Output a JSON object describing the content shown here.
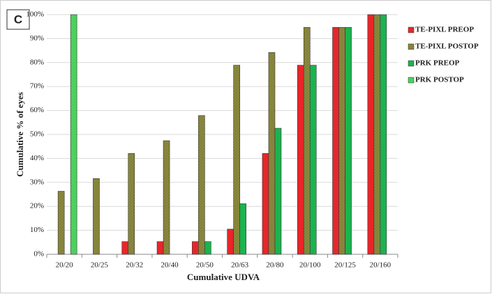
{
  "chart_data": {
    "type": "bar",
    "panel_label": "C",
    "xlabel": "Cumulative UDVA",
    "ylabel": "Cumulative % of  eyes",
    "categories": [
      "20/20",
      "20/25",
      "20/32",
      "20/40",
      "20/50",
      "20/63",
      "20/80",
      "20/100",
      "20/125",
      "20/160"
    ],
    "series": [
      {
        "name": "TE-PIXL PREOP",
        "color": "#e8262a",
        "hatch": false,
        "values": [
          0,
          0,
          5.3,
          5.3,
          5.3,
          10.5,
          42.1,
          78.9,
          94.7,
          100
        ]
      },
      {
        "name": "TE-PIXL POSTOP",
        "color": "#8c8a3e",
        "hatch": true,
        "values": [
          26.3,
          31.6,
          42.1,
          47.4,
          57.9,
          78.9,
          84.2,
          94.7,
          94.7,
          100
        ]
      },
      {
        "name": "PRK PREOP",
        "color": "#1bb34f",
        "hatch": false,
        "values": [
          0,
          0,
          0,
          0,
          5.3,
          21.1,
          52.6,
          78.9,
          94.7,
          100
        ]
      },
      {
        "name": "PRK POSTOP",
        "color": "#4fd660",
        "hatch": true,
        "values": [
          100,
          0,
          0,
          0,
          0,
          0,
          0,
          0,
          0,
          0
        ]
      }
    ],
    "ylim": [
      0,
      100
    ],
    "yticks": [
      {
        "value": 0,
        "label": "0%"
      },
      {
        "value": 10,
        "label": "10%"
      },
      {
        "value": 20,
        "label": "20%"
      },
      {
        "value": 30,
        "label": "30%"
      },
      {
        "value": 40,
        "label": "40%"
      },
      {
        "value": 50,
        "label": "50%"
      },
      {
        "value": 60,
        "label": "60%"
      },
      {
        "value": 70,
        "label": "70%"
      },
      {
        "value": 80,
        "label": "80%"
      },
      {
        "value": 90,
        "label": "90%"
      },
      {
        "value": 100,
        "label": "100%"
      }
    ],
    "grid": true,
    "legend": "right"
  }
}
